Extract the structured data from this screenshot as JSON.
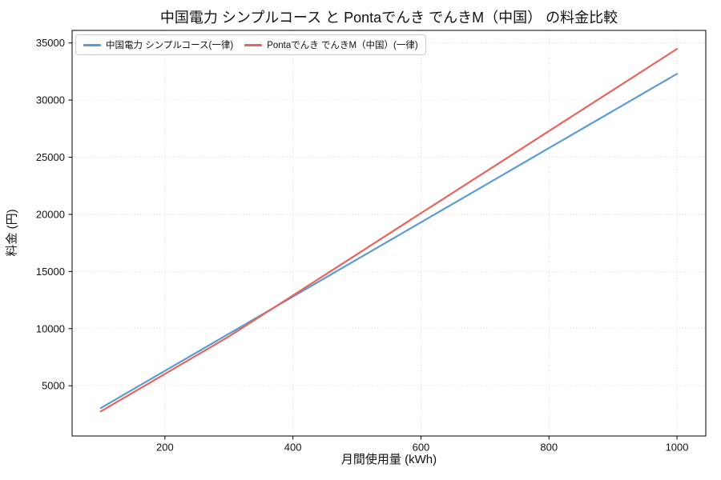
{
  "chart_data": {
    "type": "line",
    "title": "中国電力 シンプルコース と Pontaでんき でんきM（中国） の料金比較",
    "xlabel": "月間使用量 (kWh)",
    "ylabel": "料金 (円)",
    "x": [
      100,
      200,
      300,
      400,
      500,
      600,
      700,
      800,
      900,
      1000
    ],
    "series": [
      {
        "name": "中国電力 シンプルコース(一律)",
        "color": "#5B9BD5",
        "values": [
          3050,
          6300,
          9550,
          12800,
          16050,
          19300,
          22550,
          25800,
          29050,
          32300
        ]
      },
      {
        "name": "Pontaでんき でんきM（中国）(一律)",
        "color": "#E8635A",
        "values": [
          2760,
          6030,
          9310,
          12900,
          16500,
          20100,
          23690,
          27290,
          30880,
          34480
        ]
      }
    ],
    "xticks": [
      200,
      400,
      600,
      800,
      1000
    ],
    "yticks": [
      5000,
      10000,
      15000,
      20000,
      25000,
      30000,
      35000
    ],
    "xlim": [
      55,
      1045
    ],
    "ylim": [
      600,
      36100
    ],
    "grid": true,
    "grid_style": "dotted",
    "legend_position": "upper-left",
    "background": "#ffffff",
    "axis_color": "#000000",
    "grid_color": "#c9c9c9",
    "tick_label_color": "#111111"
  }
}
